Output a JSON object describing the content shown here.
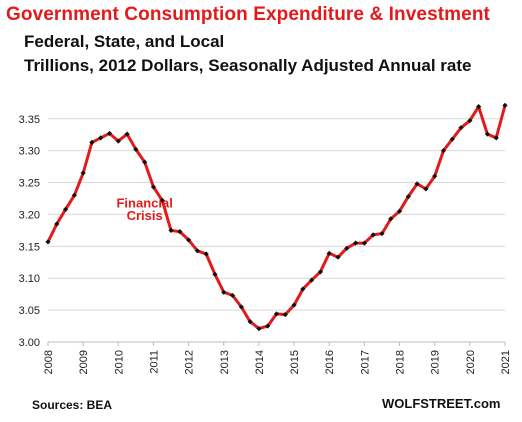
{
  "header": {
    "title": "Government Consumption  Expenditure  & Investment",
    "subtitle_line1": "Federal, State, and Local",
    "subtitle_line2": "Trillions, 2012 Dollars, Seasonally Adjusted Annual rate"
  },
  "footer": {
    "source": "Sources: BEA",
    "brand": "WOLFSTREET.com"
  },
  "colors": {
    "title": "#e31a1a",
    "line": "#e31a1a",
    "marker": "#111111",
    "grid": "#d9d9d9"
  },
  "chart_data": {
    "type": "line",
    "title": "Government Consumption  Expenditure  & Investment",
    "xlabel": "",
    "ylabel": "",
    "ylim": [
      3.0,
      3.37
    ],
    "yticks": [
      "3.00",
      "3.05",
      "3.10",
      "3.15",
      "3.20",
      "3.25",
      "3.30",
      "3.35"
    ],
    "xticks": [
      "2008",
      "2009",
      "2010",
      "2011",
      "2012",
      "2013",
      "2014",
      "2015",
      "2016",
      "2017",
      "2018",
      "2019",
      "2020",
      "2021"
    ],
    "grid": "horizontal",
    "x_start": "2008Q1",
    "frequency": "quarterly",
    "series": [
      {
        "name": "",
        "values": [
          3.157,
          3.185,
          3.208,
          3.23,
          3.265,
          3.313,
          3.32,
          3.327,
          3.315,
          3.326,
          3.302,
          3.282,
          3.243,
          3.222,
          3.175,
          3.173,
          3.16,
          3.143,
          3.138,
          3.106,
          3.078,
          3.073,
          3.055,
          3.032,
          3.021,
          3.025,
          3.044,
          3.043,
          3.058,
          3.083,
          3.097,
          3.11,
          3.139,
          3.133,
          3.147,
          3.155,
          3.155,
          3.168,
          3.17,
          3.193,
          3.205,
          3.228,
          3.248,
          3.24,
          3.26,
          3.3,
          3.318,
          3.336,
          3.347,
          3.369,
          3.326,
          3.32,
          3.371
        ]
      }
    ],
    "annotations": [
      {
        "text": "Financial",
        "x": "2010Q4",
        "y": 3.211
      },
      {
        "text": "Crisis",
        "x": "2010Q4",
        "y": 3.191
      }
    ]
  }
}
